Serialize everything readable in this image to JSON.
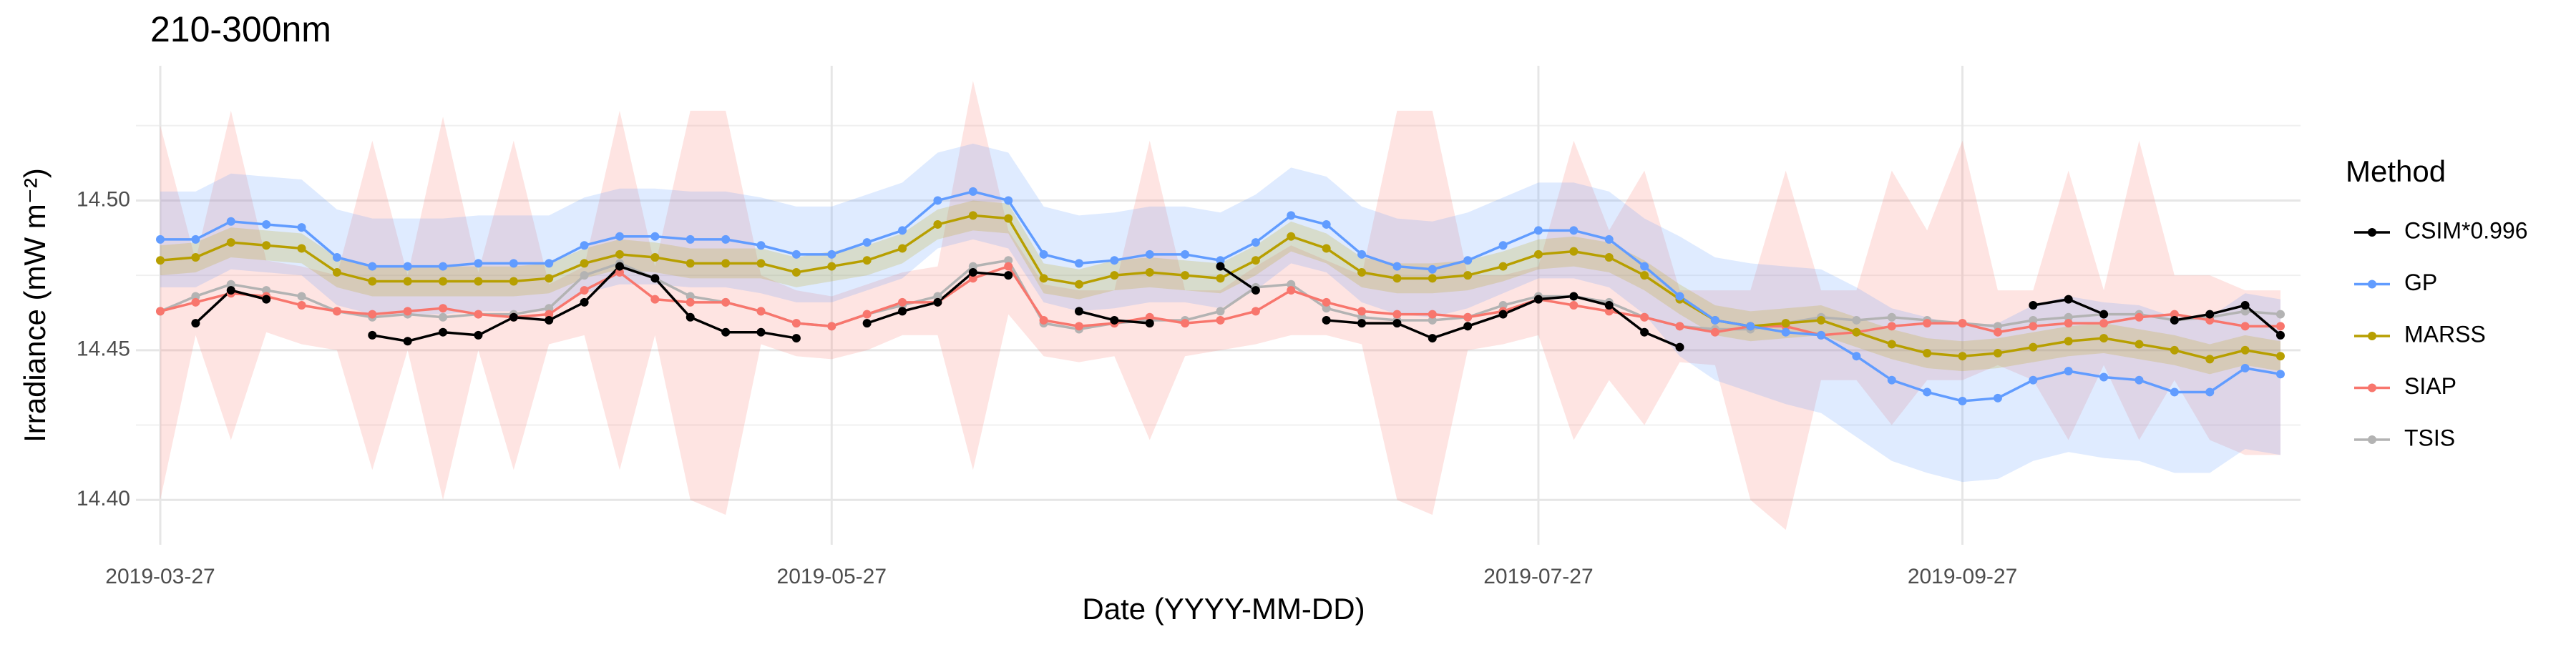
{
  "chart_data": {
    "type": "line",
    "title": "210-300nm",
    "x_label": "Date (YYYY-MM-DD)",
    "y_label": "Irradiance (mW m⁻²)",
    "legend_title": "Method",
    "legend": "right",
    "grid": true,
    "categories": [
      "2019-03-27",
      "2019-03-30",
      "2019-04-02",
      "2019-04-05",
      "2019-04-08",
      "2019-04-11",
      "2019-04-14",
      "2019-04-17",
      "2019-04-20",
      "2019-04-23",
      "2019-04-26",
      "2019-04-29",
      "2019-05-02",
      "2019-05-06",
      "2019-05-09",
      "2019-05-13",
      "2019-05-17",
      "2019-05-21",
      "2019-05-24",
      "2019-05-27",
      "2019-05-30",
      "2019-06-02",
      "2019-06-05",
      "2019-06-08",
      "2019-06-11",
      "2019-06-14",
      "2019-06-17",
      "2019-06-20",
      "2019-06-23",
      "2019-06-26",
      "2019-06-29",
      "2019-07-02",
      "2019-07-05",
      "2019-07-08",
      "2019-07-11",
      "2019-07-14",
      "2019-07-17",
      "2019-07-20",
      "2019-07-24",
      "2019-07-27",
      "2019-08-01",
      "2019-08-06",
      "2019-08-11",
      "2019-08-16",
      "2019-08-21",
      "2019-08-26",
      "2019-08-31",
      "2019-09-05",
      "2019-09-10",
      "2019-09-15",
      "2019-09-21",
      "2019-09-27",
      "2019-10-02",
      "2019-10-07",
      "2019-10-12",
      "2019-10-17",
      "2019-10-22",
      "2019-10-27",
      "2019-11-01",
      "2019-11-06",
      "2019-11-11"
    ],
    "xticks": [
      "2019-03-27",
      "2019-05-27",
      "2019-07-27",
      "2019-09-27"
    ],
    "ylim": [
      14.385,
      14.545
    ],
    "yticks": [
      {
        "value": 14.4,
        "label": "14.40"
      },
      {
        "value": 14.45,
        "label": "14.45"
      },
      {
        "value": 14.5,
        "label": "14.50"
      }
    ],
    "yminor": [
      14.425,
      14.475,
      14.525
    ],
    "series": [
      {
        "name": "CSIM*0.996",
        "color": "#000000",
        "values": [
          null,
          14.459,
          14.47,
          14.467,
          null,
          null,
          14.455,
          14.453,
          14.456,
          14.455,
          14.461,
          14.46,
          14.466,
          14.478,
          14.474,
          14.461,
          14.456,
          14.456,
          14.454,
          null,
          14.459,
          14.463,
          14.466,
          14.476,
          14.475,
          null,
          14.463,
          14.46,
          14.459,
          null,
          14.478,
          14.47,
          null,
          14.46,
          14.459,
          14.459,
          14.454,
          14.458,
          14.462,
          14.467,
          14.468,
          14.465,
          14.456,
          14.451,
          null,
          null,
          null,
          null,
          null,
          null,
          null,
          null,
          null,
          14.465,
          14.467,
          14.462,
          null,
          14.46,
          14.462,
          14.465,
          14.455
        ]
      },
      {
        "name": "GP",
        "color": "#619CFF",
        "values": [
          14.487,
          14.487,
          14.493,
          14.492,
          14.491,
          14.481,
          14.478,
          14.478,
          14.478,
          14.479,
          14.479,
          14.479,
          14.485,
          14.488,
          14.488,
          14.487,
          14.487,
          14.485,
          14.482,
          14.482,
          14.486,
          14.49,
          14.5,
          14.503,
          14.5,
          14.482,
          14.479,
          14.48,
          14.482,
          14.482,
          14.48,
          14.486,
          14.495,
          14.492,
          14.482,
          14.478,
          14.477,
          14.48,
          14.485,
          14.49,
          14.49,
          14.487,
          14.478,
          14.468,
          14.46,
          14.458,
          14.456,
          14.455,
          14.448,
          14.44,
          14.436,
          14.433,
          14.434,
          14.44,
          14.443,
          14.441,
          14.44,
          14.436,
          14.436,
          14.444,
          14.442
        ],
        "upper": [
          14.503,
          14.503,
          14.509,
          14.508,
          14.507,
          14.497,
          14.494,
          14.494,
          14.494,
          14.495,
          14.495,
          14.495,
          14.501,
          14.504,
          14.504,
          14.503,
          14.503,
          14.501,
          14.498,
          14.498,
          14.502,
          14.506,
          14.516,
          14.519,
          14.516,
          14.498,
          14.495,
          14.496,
          14.498,
          14.498,
          14.496,
          14.502,
          14.511,
          14.508,
          14.498,
          14.494,
          14.493,
          14.496,
          14.501,
          14.506,
          14.506,
          14.503,
          14.494,
          14.488,
          14.481,
          14.479,
          14.478,
          14.477,
          14.471,
          14.464,
          14.461,
          14.458,
          14.459,
          14.465,
          14.468,
          14.466,
          14.465,
          14.461,
          14.461,
          14.469,
          14.467
        ],
        "lower": [
          14.471,
          14.471,
          14.477,
          14.476,
          14.475,
          14.465,
          14.462,
          14.462,
          14.462,
          14.463,
          14.463,
          14.463,
          14.469,
          14.472,
          14.472,
          14.471,
          14.471,
          14.469,
          14.466,
          14.466,
          14.47,
          14.474,
          14.484,
          14.487,
          14.484,
          14.466,
          14.463,
          14.464,
          14.466,
          14.466,
          14.464,
          14.47,
          14.479,
          14.476,
          14.466,
          14.462,
          14.461,
          14.464,
          14.469,
          14.474,
          14.474,
          14.471,
          14.462,
          14.448,
          14.44,
          14.436,
          14.432,
          14.429,
          14.421,
          14.413,
          14.409,
          14.406,
          14.407,
          14.413,
          14.416,
          14.414,
          14.413,
          14.409,
          14.409,
          14.417,
          14.415
        ]
      },
      {
        "name": "MARSS",
        "color": "#B79F00",
        "values": [
          14.48,
          14.481,
          14.486,
          14.485,
          14.484,
          14.476,
          14.473,
          14.473,
          14.473,
          14.473,
          14.473,
          14.474,
          14.479,
          14.482,
          14.481,
          14.479,
          14.479,
          14.479,
          14.476,
          14.478,
          14.48,
          14.484,
          14.492,
          14.495,
          14.494,
          14.474,
          14.472,
          14.475,
          14.476,
          14.475,
          14.474,
          14.48,
          14.488,
          14.484,
          14.476,
          14.474,
          14.474,
          14.475,
          14.478,
          14.482,
          14.483,
          14.481,
          14.475,
          14.467,
          14.46,
          14.458,
          14.459,
          14.46,
          14.456,
          14.452,
          14.449,
          14.448,
          14.449,
          14.451,
          14.453,
          14.454,
          14.452,
          14.45,
          14.447,
          14.45,
          14.448
        ],
        "upper": [
          14.485,
          14.486,
          14.491,
          14.49,
          14.489,
          14.481,
          14.478,
          14.478,
          14.478,
          14.478,
          14.478,
          14.479,
          14.484,
          14.487,
          14.486,
          14.484,
          14.484,
          14.484,
          14.481,
          14.483,
          14.485,
          14.489,
          14.497,
          14.5,
          14.499,
          14.479,
          14.477,
          14.48,
          14.481,
          14.48,
          14.479,
          14.485,
          14.493,
          14.489,
          14.481,
          14.479,
          14.479,
          14.48,
          14.483,
          14.487,
          14.488,
          14.486,
          14.48,
          14.472,
          14.465,
          14.463,
          14.464,
          14.465,
          14.461,
          14.457,
          14.454,
          14.453,
          14.454,
          14.456,
          14.458,
          14.459,
          14.457,
          14.455,
          14.452,
          14.455,
          14.453
        ],
        "lower": [
          14.475,
          14.476,
          14.481,
          14.48,
          14.479,
          14.471,
          14.468,
          14.468,
          14.468,
          14.468,
          14.468,
          14.469,
          14.474,
          14.477,
          14.476,
          14.474,
          14.474,
          14.474,
          14.471,
          14.473,
          14.475,
          14.479,
          14.487,
          14.49,
          14.489,
          14.469,
          14.467,
          14.47,
          14.471,
          14.47,
          14.469,
          14.475,
          14.483,
          14.479,
          14.471,
          14.469,
          14.469,
          14.47,
          14.473,
          14.477,
          14.478,
          14.476,
          14.47,
          14.462,
          14.455,
          14.453,
          14.454,
          14.455,
          14.451,
          14.447,
          14.444,
          14.443,
          14.444,
          14.446,
          14.448,
          14.449,
          14.447,
          14.445,
          14.442,
          14.445,
          14.443
        ]
      },
      {
        "name": "SIAP",
        "color": "#F8766D",
        "values": [
          14.463,
          14.466,
          14.469,
          14.468,
          14.465,
          14.463,
          14.462,
          14.463,
          14.464,
          14.462,
          14.461,
          14.462,
          14.47,
          14.476,
          14.467,
          14.466,
          14.466,
          14.463,
          14.459,
          14.458,
          14.462,
          14.466,
          14.466,
          14.474,
          14.478,
          14.46,
          14.458,
          14.459,
          14.461,
          14.459,
          14.46,
          14.463,
          14.47,
          14.466,
          14.463,
          14.462,
          14.462,
          14.461,
          14.463,
          14.467,
          14.465,
          14.463,
          14.461,
          14.458,
          14.456,
          14.458,
          14.458,
          14.455,
          14.456,
          14.458,
          14.459,
          14.459,
          14.456,
          14.458,
          14.459,
          14.459,
          14.461,
          14.462,
          14.46,
          14.458,
          14.458
        ],
        "upper": [
          14.525,
          14.48,
          14.53,
          14.48,
          14.478,
          14.475,
          14.52,
          14.475,
          14.528,
          14.476,
          14.52,
          14.472,
          14.478,
          14.53,
          14.478,
          14.53,
          14.53,
          14.475,
          14.47,
          14.468,
          14.472,
          14.476,
          14.478,
          14.54,
          14.49,
          14.472,
          14.47,
          14.47,
          14.52,
          14.47,
          14.47,
          14.478,
          14.485,
          14.48,
          14.475,
          14.53,
          14.53,
          14.475,
          14.475,
          14.478,
          14.52,
          14.49,
          14.51,
          14.47,
          14.47,
          14.47,
          14.51,
          14.47,
          14.47,
          14.51,
          14.49,
          14.52,
          14.47,
          14.47,
          14.51,
          14.47,
          14.52,
          14.475,
          14.475,
          14.47,
          14.47
        ],
        "lower": [
          14.4,
          14.455,
          14.42,
          14.456,
          14.452,
          14.45,
          14.41,
          14.45,
          14.4,
          14.45,
          14.41,
          14.452,
          14.455,
          14.41,
          14.455,
          14.4,
          14.395,
          14.452,
          14.448,
          14.447,
          14.45,
          14.455,
          14.455,
          14.41,
          14.462,
          14.448,
          14.446,
          14.448,
          14.42,
          14.448,
          14.45,
          14.452,
          14.455,
          14.455,
          14.452,
          14.4,
          14.395,
          14.45,
          14.452,
          14.455,
          14.42,
          14.44,
          14.425,
          14.446,
          14.445,
          14.4,
          14.39,
          14.44,
          14.44,
          14.425,
          14.44,
          14.44,
          14.445,
          14.44,
          14.42,
          14.445,
          14.42,
          14.44,
          14.42,
          14.415,
          14.415
        ]
      },
      {
        "name": "TSIS",
        "color": "#B3B3B3",
        "values": [
          14.463,
          14.468,
          14.472,
          14.47,
          14.468,
          14.463,
          14.461,
          14.462,
          14.461,
          14.462,
          14.462,
          14.464,
          14.475,
          14.479,
          14.474,
          14.468,
          14.466,
          14.463,
          14.459,
          14.458,
          14.462,
          14.465,
          14.468,
          14.478,
          14.48,
          14.459,
          14.457,
          14.459,
          14.46,
          14.46,
          14.463,
          14.471,
          14.472,
          14.464,
          14.461,
          14.46,
          14.46,
          14.461,
          14.465,
          14.468,
          14.468,
          14.466,
          14.461,
          14.458,
          14.457,
          14.457,
          14.459,
          14.461,
          14.46,
          14.461,
          14.46,
          14.459,
          14.458,
          14.46,
          14.461,
          14.462,
          14.462,
          14.46,
          14.461,
          14.463,
          14.462
        ]
      }
    ]
  }
}
